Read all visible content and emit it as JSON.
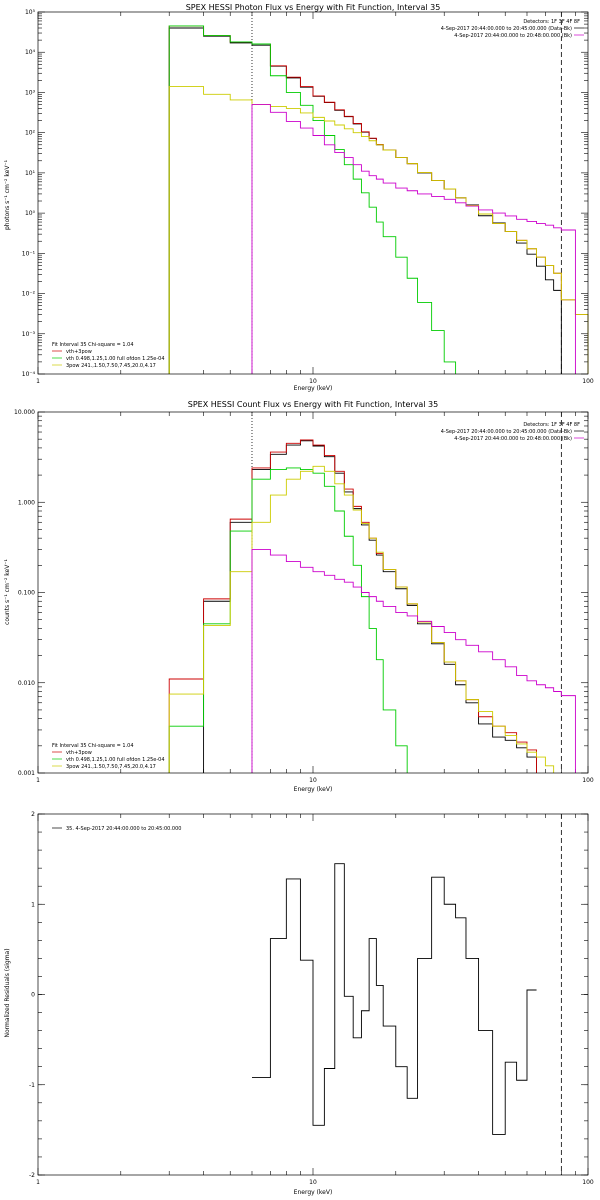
{
  "chart_data": [
    {
      "type": "line",
      "step": true,
      "title": "SPEX HESSI Photon Flux vs Energy with Fit Function, Interval 35",
      "xlabel": "Energy (keV)",
      "ylabel": "photons s⁻¹ cm⁻² keV⁻¹",
      "xscale": "log",
      "yscale": "log",
      "xlim": [
        1,
        100
      ],
      "ylim": [
        0.0001,
        100000
      ],
      "xtick_labels": [
        "1",
        "10",
        "100"
      ],
      "ytick_values": [
        0.0001,
        0.001,
        0.01,
        0.1,
        1,
        10,
        100,
        1000,
        10000,
        100000
      ],
      "ytick_labels": [
        "10⁻⁴",
        "10⁻³",
        "10⁻²",
        "10⁻¹",
        "10⁰",
        "10¹",
        "10²",
        "10³",
        "10⁴",
        "10⁵"
      ],
      "vlines": [
        {
          "x": 6,
          "style": "dotted"
        },
        {
          "x": 80,
          "style": "dashed"
        }
      ],
      "legend_top_right": {
        "detectors": "Detectors: 1F 3F 4F 8F",
        "entries": [
          {
            "label": "4-Sep-2017 20:44:00.000 to 20:45:00.000 (Data-Bk)",
            "color": "#000000"
          },
          {
            "label": "4-Sep-2017 20:44:00.000 to 20:48:00.000 (Bk)",
            "color": "#cc00cc"
          }
        ]
      },
      "legend_bottom_left": {
        "header": "Fit Interval 35   Chi-square = 1.04",
        "entries": [
          {
            "label": "vth+3pow",
            "color": "#cc0000"
          },
          {
            "label": "vth 0.498,1.25,1.00  full ofdon 1.25e-04",
            "color": "#00cc00"
          },
          {
            "label": "3pow 241.,1.50,7.50,7.45,20.0,4.17",
            "color": "#cccc00"
          }
        ]
      },
      "bin_edges": [
        3,
        4,
        5,
        6,
        7,
        8,
        9,
        10,
        11,
        12,
        13,
        14,
        15,
        16,
        17,
        18,
        20,
        22,
        24,
        27,
        30,
        33,
        36,
        40,
        45,
        50,
        55,
        60,
        65,
        70,
        75,
        80,
        90,
        100
      ],
      "series": [
        {
          "name": "Data-Bk",
          "color": "#000000",
          "x_range": [
            3,
            80
          ],
          "values": [
            40000,
            25000,
            17000,
            15000,
            4500,
            2300,
            1350,
            800,
            560,
            360,
            250,
            165,
            103,
            72,
            50,
            37,
            24,
            17,
            10,
            6.5,
            4.0,
            2.4,
            1.6,
            0.86,
            0.57,
            0.35,
            0.18,
            0.095,
            0.048,
            0.022,
            0.012
          ]
        },
        {
          "name": "vth+3pow",
          "color": "#cc0000",
          "x_range": [
            3,
            100
          ],
          "values": [
            45000,
            26000,
            18000,
            16000,
            4600,
            2400,
            1400,
            820,
            570,
            370,
            255,
            170,
            105,
            73,
            51,
            37,
            24,
            17,
            10.2,
            6.5,
            4.0,
            2.4,
            1.55,
            0.95,
            0.55,
            0.35,
            0.21,
            0.13,
            0.08,
            0.05,
            0.032,
            0.007,
            0.003
          ]
        },
        {
          "name": "vth",
          "color": "#00cc00",
          "x_range": [
            3,
            30
          ],
          "values": [
            45000,
            26000,
            18000,
            16000,
            2600,
            1000,
            480,
            200,
            85,
            38,
            16,
            7,
            3.2,
            1.4,
            0.6,
            0.26,
            0.08,
            0.024,
            0.006,
            0.0012,
            0.0002
          ]
        },
        {
          "name": "3pow",
          "color": "#cccc00",
          "x_range": [
            3,
            100
          ],
          "values": [
            1400,
            900,
            650,
            500,
            450,
            400,
            310,
            240,
            195,
            155,
            125,
            100,
            80,
            63,
            50,
            37,
            24,
            17,
            10.2,
            6.5,
            4.0,
            2.4,
            1.55,
            0.95,
            0.55,
            0.35,
            0.21,
            0.13,
            0.08,
            0.05,
            0.032,
            0.007,
            0.003
          ]
        },
        {
          "name": "Bk",
          "color": "#cc00cc",
          "x_range": [
            6,
            80
          ],
          "values": [
            500,
            320,
            190,
            130,
            85,
            50,
            32,
            24,
            16,
            11,
            8.5,
            7.0,
            5.6,
            4.2,
            3.6,
            3.0,
            2.6,
            2.2,
            1.8,
            1.5,
            1.2,
            1.0,
            0.85,
            0.7,
            0.62,
            0.55,
            0.5,
            0.43,
            0.38
          ]
        }
      ]
    },
    {
      "type": "line",
      "step": true,
      "title": "SPEX HESSI Count Flux vs Energy with Fit Function, Interval 35",
      "xlabel": "Energy (keV)",
      "ylabel": "counts s⁻¹ cm⁻² keV⁻¹",
      "xscale": "log",
      "yscale": "log",
      "xlim": [
        1,
        100
      ],
      "ylim": [
        0.001,
        10
      ],
      "xtick_labels": [
        "1",
        "10",
        "100"
      ],
      "ytick_values": [
        0.001,
        0.01,
        0.1,
        1,
        10
      ],
      "ytick_labels": [
        "0.001",
        "0.010",
        "0.100",
        "1.000",
        "10.000"
      ],
      "vlines": [
        {
          "x": 6,
          "style": "dotted"
        },
        {
          "x": 80,
          "style": "dashed"
        }
      ],
      "legend_top_right": {
        "detectors": "Detectors: 1F 3F 4F 8F",
        "entries": [
          {
            "label": "4-Sep-2017 20:44:00.000 to 20:45:00.000 (Data-Bk)",
            "color": "#000000"
          },
          {
            "label": "4-Sep-2017 20:44:00.000 to 20:48:00.000 (Bk)",
            "color": "#cc00cc"
          }
        ]
      },
      "legend_bottom_left": {
        "header": "Fit Interval 35   Chi-square = 1.04",
        "entries": [
          {
            "label": "vth+3pow",
            "color": "#cc0000"
          },
          {
            "label": "vth 0.498,1.25,1.00  full ofdon 1.25e-04",
            "color": "#00cc00"
          },
          {
            "label": "3pow 241.,1.50,7.50,7.45,20.0,4.17",
            "color": "#cccc00"
          }
        ]
      },
      "bin_edges": [
        3,
        4,
        5,
        6,
        7,
        8,
        9,
        10,
        11,
        12,
        13,
        14,
        15,
        16,
        17,
        18,
        20,
        22,
        24,
        27,
        30,
        33,
        36,
        40,
        45,
        50,
        55,
        60,
        65,
        70,
        75,
        80,
        90,
        100
      ],
      "series": [
        {
          "name": "Data-Bk",
          "color": "#000000",
          "x_range": [
            4,
            80
          ],
          "values": [
            0.08,
            0.6,
            2.3,
            3.4,
            4.3,
            4.8,
            4.2,
            3.2,
            2.1,
            1.3,
            0.85,
            0.56,
            0.38,
            0.26,
            0.17,
            0.11,
            0.072,
            0.045,
            0.027,
            0.016,
            0.0095,
            0.006,
            0.0035,
            0.0025,
            0.0023,
            0.0019,
            0.0015
          ]
        },
        {
          "name": "vth+3pow",
          "color": "#cc0000",
          "x_range": [
            3,
            80
          ],
          "values": [
            0.011,
            0.085,
            0.65,
            2.4,
            3.6,
            4.5,
            4.9,
            4.3,
            3.3,
            2.2,
            1.4,
            0.9,
            0.6,
            0.4,
            0.27,
            0.18,
            0.115,
            0.075,
            0.047,
            0.028,
            0.017,
            0.0105,
            0.0065,
            0.0042,
            0.0033,
            0.0028,
            0.0022,
            0.0018
          ]
        },
        {
          "name": "vth",
          "color": "#00cc00",
          "x_range": [
            3,
            24
          ],
          "values": [
            0.0033,
            0.045,
            0.48,
            1.8,
            2.3,
            2.4,
            2.3,
            2.1,
            1.5,
            0.8,
            0.42,
            0.2,
            0.09,
            0.04,
            0.018,
            0.005,
            0.002
          ]
        },
        {
          "name": "3pow",
          "color": "#cccc00",
          "x_range": [
            3,
            90
          ],
          "values": [
            0.0075,
            0.043,
            0.17,
            0.6,
            1.2,
            1.8,
            2.2,
            2.5,
            2.2,
            1.6,
            1.2,
            0.82,
            0.58,
            0.4,
            0.28,
            0.18,
            0.115,
            0.075,
            0.047,
            0.028,
            0.017,
            0.0105,
            0.0065,
            0.0048,
            0.0033,
            0.0026,
            0.0021,
            0.0017,
            0.0015,
            0.0012
          ]
        },
        {
          "name": "Bk",
          "color": "#cc00cc",
          "x_range": [
            6,
            80
          ],
          "values": [
            0.3,
            0.26,
            0.22,
            0.19,
            0.17,
            0.155,
            0.14,
            0.13,
            0.115,
            0.1,
            0.09,
            0.08,
            0.07,
            0.06,
            0.055,
            0.048,
            0.042,
            0.036,
            0.03,
            0.026,
            0.022,
            0.018,
            0.015,
            0.012,
            0.0105,
            0.0095,
            0.0088,
            0.008,
            0.0072
          ]
        }
      ]
    },
    {
      "type": "line",
      "step": true,
      "title": "",
      "xlabel": "Energy (keV)",
      "ylabel": "Normalized Residuals (sigma)",
      "xscale": "log",
      "yscale": "linear",
      "xlim": [
        1,
        100
      ],
      "ylim": [
        -2,
        2
      ],
      "xtick_labels": [
        "1",
        "10",
        "100"
      ],
      "ytick_values": [
        -2,
        -1,
        0,
        1,
        2
      ],
      "ytick_labels": [
        "-2",
        "-1",
        "0",
        "1",
        "2"
      ],
      "vlines": [
        {
          "x": 80,
          "style": "dashed"
        }
      ],
      "legend_top_left": {
        "entries": [
          {
            "label": "35.  4-Sep-2017 20:44:00.000 to 20:45:00.000",
            "color": "#000000"
          }
        ]
      },
      "bin_edges": [
        6,
        7,
        8,
        9,
        10,
        11,
        12,
        13,
        14,
        15,
        16,
        17,
        18,
        20,
        22,
        24,
        27,
        30,
        33,
        36,
        40,
        45,
        50,
        55,
        60,
        65,
        70,
        75,
        80
      ],
      "series": [
        {
          "name": "35",
          "color": "#000000",
          "values": [
            -0.92,
            0.62,
            1.28,
            0.38,
            -1.45,
            -0.82,
            1.45,
            -0.02,
            -0.48,
            -0.18,
            0.62,
            0.1,
            -0.35,
            -0.8,
            -1.15,
            0.4,
            1.3,
            1.0,
            0.85,
            0.4,
            -0.4,
            -1.55,
            -0.75,
            -0.95,
            0.05
          ]
        }
      ]
    }
  ]
}
